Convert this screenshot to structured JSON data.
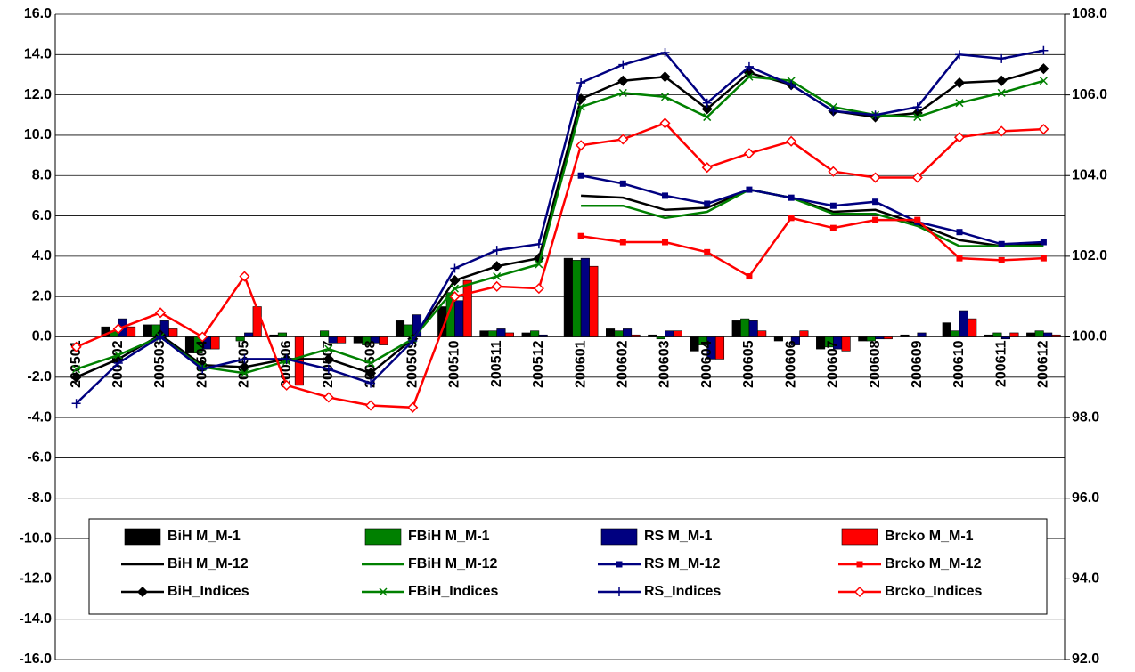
{
  "chart_data": {
    "type": "bar",
    "categories": [
      "200501",
      "200502",
      "200503",
      "200504",
      "200505",
      "200506",
      "200507",
      "200508",
      "200509",
      "200510",
      "200511",
      "200512",
      "200601",
      "200602",
      "200603",
      "200604",
      "200605",
      "200606",
      "200607",
      "200608",
      "200609",
      "200610",
      "200611",
      "200612"
    ],
    "ylim": [
      -16,
      16
    ],
    "yticks": [
      {
        "value": -16,
        "label": "-16.0"
      },
      {
        "value": -14,
        "label": "-14.0"
      },
      {
        "value": -12,
        "label": "-12.0"
      },
      {
        "value": -10,
        "label": "-10.0"
      },
      {
        "value": -8,
        "label": "-8.0"
      },
      {
        "value": -6,
        "label": "-6.0"
      },
      {
        "value": -4,
        "label": "-4.0"
      },
      {
        "value": -2,
        "label": "-2.0"
      },
      {
        "value": 0,
        "label": "0.0"
      },
      {
        "value": 2,
        "label": "2.0"
      },
      {
        "value": 4,
        "label": "4.0"
      },
      {
        "value": 6,
        "label": "6.0"
      },
      {
        "value": 8,
        "label": "8.0"
      },
      {
        "value": 10,
        "label": "10.0"
      },
      {
        "value": 12,
        "label": "12.0"
      },
      {
        "value": 14,
        "label": "14.0"
      },
      {
        "value": 16,
        "label": "16.0"
      }
    ],
    "y2lim": [
      92,
      108
    ],
    "y2ticks": [
      {
        "value": 92,
        "label": "92.0"
      },
      {
        "value": 94,
        "label": "94.0"
      },
      {
        "value": 96,
        "label": "96.0"
      },
      {
        "value": 98,
        "label": "98.0"
      },
      {
        "value": 100,
        "label": "100.0"
      },
      {
        "value": 102,
        "label": "102.0"
      },
      {
        "value": 104,
        "label": "104.0"
      },
      {
        "value": 106,
        "label": "106.0"
      },
      {
        "value": 108,
        "label": "108.0"
      }
    ],
    "grid": true,
    "legend": "lower center",
    "series": [
      {
        "name": "BiH M_M-1",
        "type": "bar",
        "color": "#000000",
        "values": [
          0,
          0.5,
          0.6,
          -0.8,
          0,
          0.1,
          0,
          -0.3,
          0.8,
          1.5,
          0.3,
          0.2,
          3.9,
          0.4,
          0.1,
          -0.7,
          0.8,
          -0.2,
          -0.6,
          -0.2,
          0.1,
          0.7,
          0.1,
          0.2
        ]
      },
      {
        "name": "FBiH M_M-1",
        "type": "bar",
        "color": "#008000",
        "values": [
          0,
          0.3,
          0.6,
          -0.8,
          -0.2,
          0.2,
          0.3,
          -0.4,
          0.6,
          2.2,
          0.3,
          0.3,
          3.8,
          0.3,
          -0.1,
          -0.4,
          0.9,
          0,
          -0.5,
          -0.2,
          0,
          0.3,
          0.2,
          0.3
        ]
      },
      {
        "name": "RS M_M-1",
        "type": "bar",
        "color": "#000080",
        "values": [
          0,
          0.9,
          0.8,
          -0.6,
          0.2,
          0,
          -0.3,
          -0.3,
          1.1,
          1.8,
          0.4,
          0.1,
          3.9,
          0.4,
          0.3,
          -1.1,
          0.8,
          -0.4,
          -0.6,
          -0.1,
          0.2,
          1.3,
          -0.1,
          0.2
        ]
      },
      {
        "name": "Brcko M_M-1",
        "type": "bar",
        "color": "#ff0000",
        "values": [
          0,
          0.5,
          0.4,
          -0.6,
          1.5,
          -2.4,
          -0.3,
          -0.4,
          0,
          2.8,
          0.2,
          0,
          3.5,
          0.1,
          0.3,
          -1.1,
          0.3,
          0.3,
          -0.7,
          -0.1,
          0,
          0.9,
          0.2,
          0.1
        ]
      },
      {
        "name": "BiH M_M-12",
        "type": "line",
        "color": "#000000",
        "marker": "none",
        "values": [
          null,
          null,
          null,
          null,
          null,
          null,
          null,
          null,
          null,
          null,
          null,
          null,
          7.0,
          6.9,
          6.3,
          6.4,
          7.3,
          6.9,
          6.2,
          6.3,
          5.6,
          4.8,
          4.5,
          4.6
        ]
      },
      {
        "name": "FBiH M_M-12",
        "type": "line",
        "color": "#008000",
        "marker": "none",
        "values": [
          null,
          null,
          null,
          null,
          null,
          null,
          null,
          null,
          null,
          null,
          null,
          null,
          6.5,
          6.5,
          5.9,
          6.2,
          7.3,
          6.9,
          6.1,
          6.1,
          5.5,
          4.5,
          4.5,
          4.5
        ]
      },
      {
        "name": "RS M_M-12",
        "type": "line",
        "color": "#000080",
        "marker": "square",
        "values": [
          null,
          null,
          null,
          null,
          null,
          null,
          null,
          null,
          null,
          null,
          null,
          null,
          8.0,
          7.6,
          7.0,
          6.6,
          7.3,
          6.9,
          6.5,
          6.7,
          5.7,
          5.2,
          4.6,
          4.7
        ]
      },
      {
        "name": "Brcko M_M-12",
        "type": "line",
        "color": "#ff0000",
        "marker": "square",
        "values": [
          null,
          null,
          null,
          null,
          null,
          null,
          null,
          null,
          null,
          null,
          null,
          null,
          5.0,
          4.7,
          4.7,
          4.2,
          3.0,
          5.9,
          5.4,
          5.8,
          5.8,
          3.9,
          3.8,
          3.9
        ]
      },
      {
        "name": "BiH_Indices",
        "type": "line",
        "axis": "y2",
        "color": "#000000",
        "marker": "diamond",
        "values": [
          99.0,
          99.45,
          100.05,
          99.3,
          99.25,
          99.45,
          99.45,
          99.1,
          99.95,
          101.4,
          101.75,
          101.95,
          105.9,
          106.35,
          106.45,
          105.65,
          106.55,
          106.25,
          105.6,
          105.45,
          105.55,
          106.3,
          106.35,
          106.65
        ]
      },
      {
        "name": "FBiH_Indices",
        "type": "line",
        "axis": "y2",
        "color": "#008000",
        "marker": "x",
        "values": [
          99.2,
          99.55,
          100.0,
          99.25,
          99.1,
          99.4,
          99.7,
          99.35,
          99.95,
          101.2,
          101.5,
          101.8,
          105.7,
          106.05,
          105.95,
          105.45,
          106.45,
          106.35,
          105.7,
          105.5,
          105.45,
          105.8,
          106.05,
          106.35
        ]
      },
      {
        "name": "RS_Indices",
        "type": "line",
        "axis": "y2",
        "color": "#000080",
        "marker": "plus",
        "values": [
          98.35,
          99.35,
          100.0,
          99.2,
          99.45,
          99.45,
          99.2,
          98.85,
          99.9,
          101.7,
          102.15,
          102.3,
          106.3,
          106.75,
          107.05,
          105.8,
          106.7,
          106.25,
          105.6,
          105.5,
          105.7,
          107.0,
          106.9,
          107.1
        ]
      },
      {
        "name": "Brcko_Indices",
        "type": "line",
        "axis": "y2",
        "color": "#ff0000",
        "marker": "diamond-open",
        "values": [
          99.75,
          100.2,
          100.6,
          100.0,
          101.5,
          98.8,
          98.5,
          98.3,
          98.25,
          101.0,
          101.25,
          101.2,
          104.75,
          104.9,
          105.3,
          104.2,
          104.55,
          104.85,
          104.1,
          103.95,
          103.95,
          104.95,
          105.1,
          105.15
        ]
      }
    ]
  }
}
